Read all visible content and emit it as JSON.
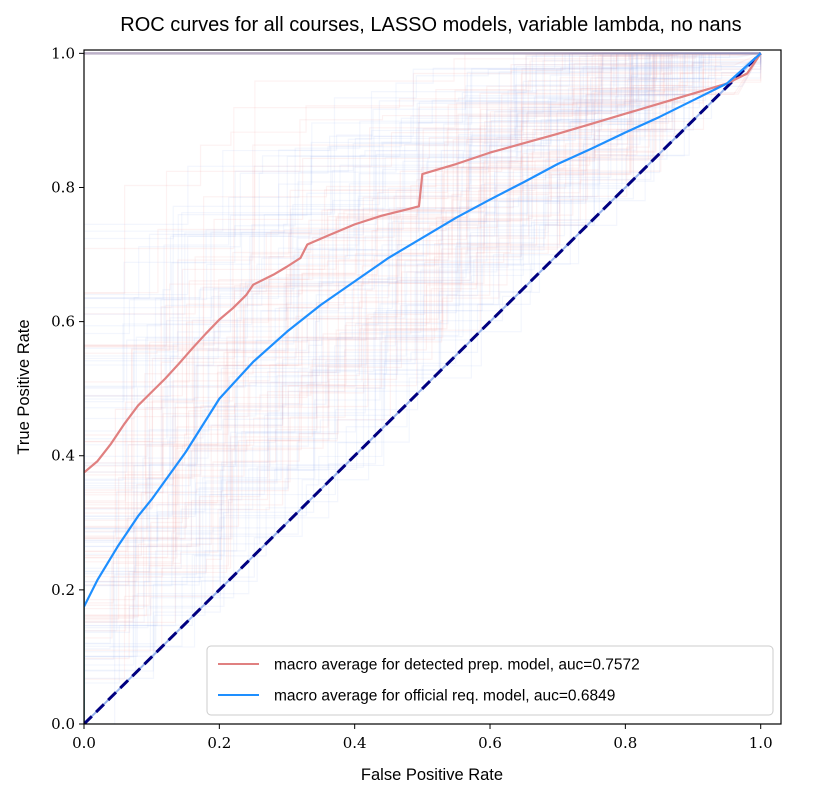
{
  "chart_data": {
    "type": "line",
    "title": "ROC curves for all courses, LASSO models, variable lambda, no nans",
    "xlabel": "False Positive Rate",
    "ylabel": "True Positive Rate",
    "xlim": [
      0.0,
      1.03
    ],
    "ylim": [
      0.0,
      1.005
    ],
    "xticks": [
      "0.0",
      "0.2",
      "0.4",
      "0.6",
      "0.8",
      "1.0"
    ],
    "yticks": [
      "0.0",
      "0.2",
      "0.4",
      "0.6",
      "0.8",
      "1.0"
    ],
    "grid": false,
    "legend_position": "lower-right",
    "series": [
      {
        "name": "macro average for detected prep. model, auc=0.7572",
        "color": "#e08080",
        "x": [
          0,
          0.02,
          0.04,
          0.06,
          0.08,
          0.1,
          0.12,
          0.14,
          0.16,
          0.18,
          0.2,
          0.22,
          0.24,
          0.25,
          0.28,
          0.3,
          0.32,
          0.33,
          0.36,
          0.4,
          0.44,
          0.48,
          0.495,
          0.5,
          0.55,
          0.6,
          0.65,
          0.7,
          0.75,
          0.8,
          0.85,
          0.9,
          0.95,
          0.98,
          1.0
        ],
        "y": [
          0.375,
          0.392,
          0.418,
          0.448,
          0.475,
          0.495,
          0.515,
          0.537,
          0.56,
          0.582,
          0.603,
          0.62,
          0.64,
          0.655,
          0.67,
          0.682,
          0.695,
          0.715,
          0.728,
          0.745,
          0.758,
          0.768,
          0.772,
          0.82,
          0.835,
          0.852,
          0.866,
          0.88,
          0.895,
          0.91,
          0.925,
          0.94,
          0.955,
          0.97,
          1.0
        ]
      },
      {
        "name": "macro average for official req. model, auc=0.6849",
        "color": "#1e8fff",
        "x": [
          0,
          0.02,
          0.05,
          0.08,
          0.1,
          0.15,
          0.2,
          0.25,
          0.3,
          0.35,
          0.4,
          0.45,
          0.5,
          0.55,
          0.6,
          0.65,
          0.7,
          0.75,
          0.8,
          0.85,
          0.9,
          0.95,
          1.0
        ],
        "y": [
          0.175,
          0.215,
          0.265,
          0.31,
          0.335,
          0.405,
          0.485,
          0.54,
          0.585,
          0.625,
          0.66,
          0.695,
          0.725,
          0.755,
          0.782,
          0.808,
          0.835,
          0.858,
          0.882,
          0.905,
          0.93,
          0.955,
          1.0
        ]
      },
      {
        "name": "",
        "color": "#000080",
        "dash": true,
        "x": [
          0,
          1
        ],
        "y": [
          0,
          1
        ]
      }
    ]
  },
  "colors": {
    "detected_faint": "#f0a0a0",
    "official_faint": "#88aaee"
  }
}
